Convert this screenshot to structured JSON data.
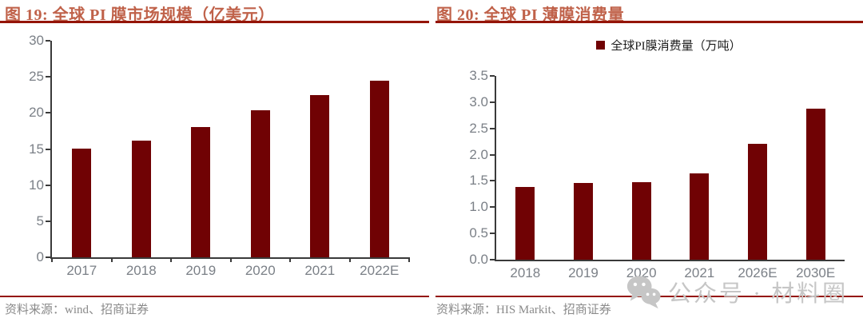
{
  "page": {
    "watermark_text": "公众号 · 材料圈",
    "watermark_icon": "wechat-icon"
  },
  "colors": {
    "bar": "#700204",
    "title": "#c0624a",
    "rule": "#941408",
    "axis": "#3a3a3a",
    "tick_label": "#7b8087",
    "source_text": "#8a8a8a",
    "watermark": "#c6c6c6"
  },
  "chart_data": [
    {
      "type": "bar",
      "title": "图 19: 全球 PI 膜市场规模（亿美元）",
      "source": "资料来源：wind、招商证券",
      "legend": null,
      "categories": [
        "2017",
        "2018",
        "2019",
        "2020",
        "2021",
        "2022E"
      ],
      "values": [
        15.1,
        16.2,
        18.0,
        20.4,
        22.5,
        24.5
      ],
      "ylim": [
        0,
        30
      ],
      "ytick_labels": [
        "0",
        "5",
        "10",
        "15",
        "20",
        "25",
        "30"
      ],
      "ytick_values": [
        0,
        5,
        10,
        15,
        20,
        25,
        30
      ],
      "grid": false,
      "legend_position": "none"
    },
    {
      "type": "bar",
      "title": "图 20: 全球 PI 薄膜消费量",
      "source": "资料来源：HIS Markit、招商证券",
      "legend": "全球PI膜消费量（万吨）",
      "categories": [
        "2018",
        "2019",
        "2020",
        "2021",
        "2026E",
        "2030E"
      ],
      "values": [
        1.39,
        1.46,
        1.48,
        1.64,
        2.21,
        2.87
      ],
      "ylim": [
        0,
        3.5
      ],
      "ytick_labels": [
        "0.0",
        "0.5",
        "1.0",
        "1.5",
        "2.0",
        "2.5",
        "3.0",
        "3.5"
      ],
      "ytick_values": [
        0,
        0.5,
        1.0,
        1.5,
        2.0,
        2.5,
        3.0,
        3.5
      ],
      "grid": false,
      "legend_position": "top-center"
    }
  ]
}
